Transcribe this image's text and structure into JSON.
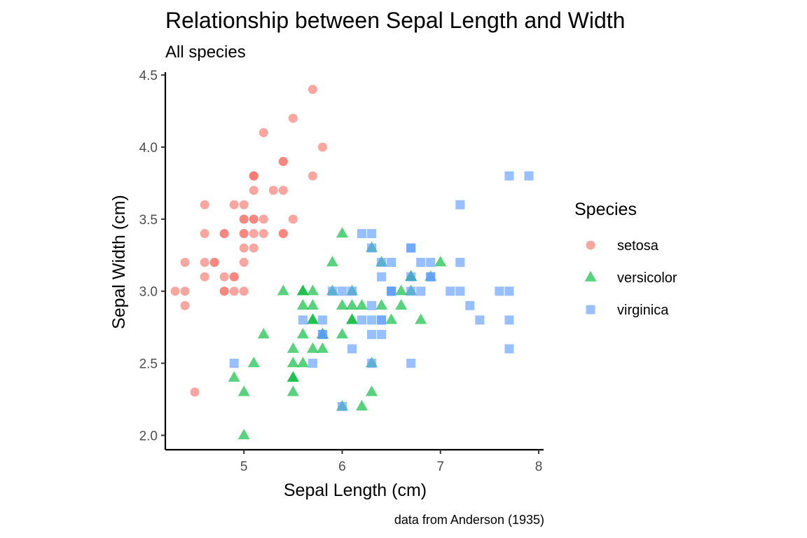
{
  "chart_data": {
    "type": "scatter",
    "title": "Relationship between Sepal Length and Width",
    "subtitle": "All species",
    "xlabel": "Sepal Length (cm)",
    "ylabel": "Sepal Width (cm)",
    "caption": "data from Anderson (1935)",
    "xlim": [
      4.2,
      8.05
    ],
    "ylim": [
      1.9,
      4.52
    ],
    "xticks": [
      5,
      6,
      7,
      8
    ],
    "xtick_labels": [
      "5",
      "6",
      "7",
      "8"
    ],
    "yticks": [
      2.0,
      2.5,
      3.0,
      3.5,
      4.0,
      4.5
    ],
    "ytick_labels": [
      "2.0",
      "2.5",
      "3.0",
      "3.5",
      "4.0",
      "4.5"
    ],
    "grid": false,
    "legend": {
      "title": "Species",
      "placement": "right"
    },
    "series": [
      {
        "name": "setosa",
        "color": "#F8766D",
        "marker": "circle",
        "points": [
          [
            5.1,
            3.5
          ],
          [
            4.9,
            3.0
          ],
          [
            4.7,
            3.2
          ],
          [
            4.6,
            3.1
          ],
          [
            5.0,
            3.6
          ],
          [
            5.4,
            3.9
          ],
          [
            4.6,
            3.4
          ],
          [
            5.0,
            3.4
          ],
          [
            4.4,
            2.9
          ],
          [
            4.9,
            3.1
          ],
          [
            5.4,
            3.7
          ],
          [
            4.8,
            3.4
          ],
          [
            4.8,
            3.0
          ],
          [
            4.3,
            3.0
          ],
          [
            5.8,
            4.0
          ],
          [
            5.7,
            4.4
          ],
          [
            5.4,
            3.9
          ],
          [
            5.1,
            3.5
          ],
          [
            5.7,
            3.8
          ],
          [
            5.1,
            3.8
          ],
          [
            5.4,
            3.4
          ],
          [
            5.1,
            3.7
          ],
          [
            4.6,
            3.6
          ],
          [
            5.1,
            3.3
          ],
          [
            4.8,
            3.4
          ],
          [
            5.0,
            3.0
          ],
          [
            5.0,
            3.4
          ],
          [
            5.2,
            3.5
          ],
          [
            5.2,
            3.4
          ],
          [
            4.7,
            3.2
          ],
          [
            4.8,
            3.1
          ],
          [
            5.4,
            3.4
          ],
          [
            5.2,
            4.1
          ],
          [
            5.5,
            4.2
          ],
          [
            4.9,
            3.1
          ],
          [
            5.0,
            3.2
          ],
          [
            5.5,
            3.5
          ],
          [
            4.9,
            3.6
          ],
          [
            4.4,
            3.0
          ],
          [
            5.1,
            3.4
          ],
          [
            5.0,
            3.5
          ],
          [
            4.5,
            2.3
          ],
          [
            4.4,
            3.2
          ],
          [
            5.0,
            3.5
          ],
          [
            5.1,
            3.8
          ],
          [
            4.8,
            3.0
          ],
          [
            5.1,
            3.8
          ],
          [
            4.6,
            3.2
          ],
          [
            5.3,
            3.7
          ],
          [
            5.0,
            3.3
          ]
        ]
      },
      {
        "name": "versicolor",
        "color": "#00BA38",
        "marker": "triangle",
        "points": [
          [
            7.0,
            3.2
          ],
          [
            6.4,
            3.2
          ],
          [
            6.9,
            3.1
          ],
          [
            5.5,
            2.3
          ],
          [
            6.5,
            2.8
          ],
          [
            5.7,
            2.8
          ],
          [
            6.3,
            3.3
          ],
          [
            4.9,
            2.4
          ],
          [
            6.6,
            2.9
          ],
          [
            5.2,
            2.7
          ],
          [
            5.0,
            2.0
          ],
          [
            5.9,
            3.0
          ],
          [
            6.0,
            2.2
          ],
          [
            6.1,
            2.9
          ],
          [
            5.6,
            2.9
          ],
          [
            6.7,
            3.1
          ],
          [
            5.6,
            3.0
          ],
          [
            5.8,
            2.7
          ],
          [
            6.2,
            2.2
          ],
          [
            5.6,
            2.5
          ],
          [
            5.9,
            3.2
          ],
          [
            6.1,
            2.8
          ],
          [
            6.3,
            2.5
          ],
          [
            6.1,
            2.8
          ],
          [
            6.4,
            2.9
          ],
          [
            6.6,
            3.0
          ],
          [
            6.8,
            2.8
          ],
          [
            6.7,
            3.0
          ],
          [
            6.0,
            2.9
          ],
          [
            5.7,
            2.6
          ],
          [
            5.5,
            2.4
          ],
          [
            5.5,
            2.4
          ],
          [
            5.8,
            2.7
          ],
          [
            6.0,
            2.7
          ],
          [
            5.4,
            3.0
          ],
          [
            6.0,
            3.4
          ],
          [
            6.7,
            3.1
          ],
          [
            6.3,
            2.3
          ],
          [
            5.6,
            3.0
          ],
          [
            5.5,
            2.5
          ],
          [
            5.5,
            2.6
          ],
          [
            6.1,
            3.0
          ],
          [
            5.8,
            2.6
          ],
          [
            5.0,
            2.3
          ],
          [
            5.6,
            2.7
          ],
          [
            5.7,
            3.0
          ],
          [
            5.7,
            2.9
          ],
          [
            6.2,
            2.9
          ],
          [
            5.1,
            2.5
          ],
          [
            5.7,
            2.8
          ]
        ]
      },
      {
        "name": "virginica",
        "color": "#619CFF",
        "marker": "square",
        "points": [
          [
            6.3,
            3.3
          ],
          [
            5.8,
            2.7
          ],
          [
            7.1,
            3.0
          ],
          [
            6.3,
            2.9
          ],
          [
            6.5,
            3.0
          ],
          [
            7.6,
            3.0
          ],
          [
            4.9,
            2.5
          ],
          [
            7.3,
            2.9
          ],
          [
            6.7,
            2.5
          ],
          [
            7.2,
            3.6
          ],
          [
            6.5,
            3.2
          ],
          [
            6.4,
            2.7
          ],
          [
            6.8,
            3.0
          ],
          [
            5.7,
            2.5
          ],
          [
            5.8,
            2.8
          ],
          [
            6.4,
            3.2
          ],
          [
            6.5,
            3.0
          ],
          [
            7.7,
            3.8
          ],
          [
            7.7,
            2.6
          ],
          [
            6.0,
            2.2
          ],
          [
            6.9,
            3.2
          ],
          [
            5.6,
            2.8
          ],
          [
            7.7,
            2.8
          ],
          [
            6.3,
            2.7
          ],
          [
            6.7,
            3.3
          ],
          [
            7.2,
            3.2
          ],
          [
            6.2,
            2.8
          ],
          [
            6.1,
            3.0
          ],
          [
            6.4,
            2.8
          ],
          [
            7.2,
            3.0
          ],
          [
            7.4,
            2.8
          ],
          [
            7.9,
            3.8
          ],
          [
            6.4,
            2.8
          ],
          [
            6.3,
            2.8
          ],
          [
            6.1,
            2.6
          ],
          [
            7.7,
            3.0
          ],
          [
            6.3,
            3.4
          ],
          [
            6.4,
            3.1
          ],
          [
            6.0,
            3.0
          ],
          [
            6.9,
            3.1
          ],
          [
            6.7,
            3.1
          ],
          [
            6.9,
            3.1
          ],
          [
            5.8,
            2.7
          ],
          [
            6.8,
            3.2
          ],
          [
            6.7,
            3.3
          ],
          [
            6.7,
            3.0
          ],
          [
            6.3,
            2.5
          ],
          [
            6.5,
            3.0
          ],
          [
            6.2,
            3.4
          ],
          [
            5.9,
            3.0
          ]
        ]
      }
    ]
  }
}
